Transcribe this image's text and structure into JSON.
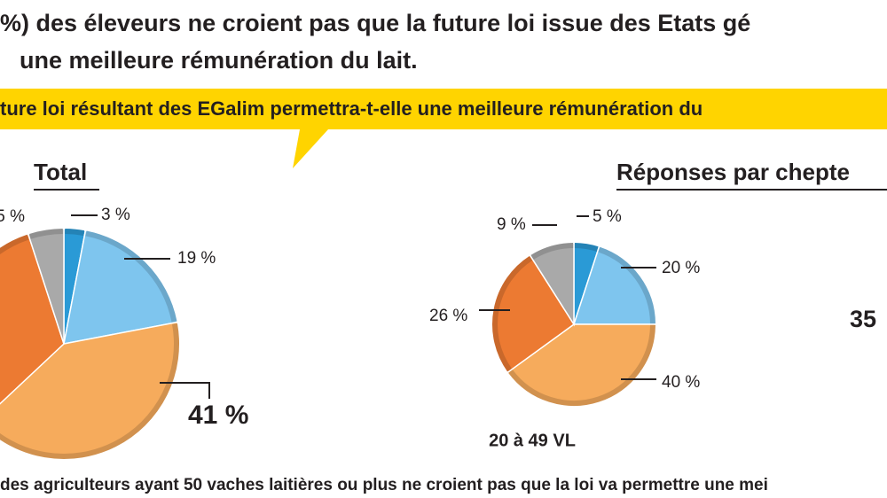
{
  "headline": [
    "%) des éleveurs ne croient pas que la future loi issue des Etats gé",
    "une meilleure rémunération du lait."
  ],
  "question": "ture loi résultant des EGalim permettra-t-elle une meilleure rémunération du",
  "chart_data": [
    {
      "type": "pie",
      "title": "Total",
      "values": [
        3,
        19,
        41,
        32,
        5
      ],
      "value_labels": [
        "3 %",
        "19 %",
        "41 %",
        null,
        "5 %"
      ],
      "colors": [
        "#2a9ad6",
        "#7ec5ee",
        "#f6ab5c",
        "#ec7a32",
        "#a9a9a9"
      ]
    },
    {
      "type": "pie",
      "title": "Réponses par chepte",
      "subtitle": "20 à 49 VL",
      "values": [
        5,
        20,
        40,
        26,
        9
      ],
      "value_labels": [
        "5 %",
        "20 %",
        "40 %",
        "26 %",
        "9 %"
      ],
      "colors": [
        "#2a9ad6",
        "#7ec5ee",
        "#f6ab5c",
        "#ec7a32",
        "#a9a9a9"
      ]
    }
  ],
  "cropped_labels": [
    "35"
  ],
  "footer": "des agriculteurs ayant 50 vaches laitières ou plus ne croient pas que la loi va permettre une mei"
}
